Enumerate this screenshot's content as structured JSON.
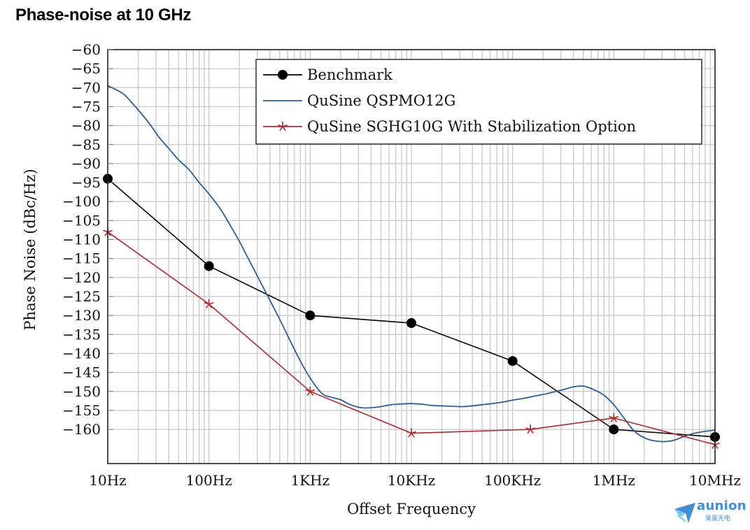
{
  "slide": {
    "title": "Phase-noise at 10 GHz"
  },
  "logo": {
    "name": "aunion",
    "subtitle": "昊量光电"
  },
  "chart_data": {
    "type": "line",
    "title": "Phase-noise at 10 GHz",
    "xlabel": "Offset Frequency",
    "ylabel": "Phase Noise (dBc/Hz)",
    "xscale": "log",
    "xlim": [
      10,
      10000000
    ],
    "ylim": [
      -169,
      -60
    ],
    "grid": true,
    "legend_position": "top-right",
    "x_ticks": [
      {
        "value": 10,
        "label": "10Hz"
      },
      {
        "value": 100,
        "label": "100Hz"
      },
      {
        "value": 1000,
        "label": "1KHz"
      },
      {
        "value": 10000,
        "label": "10KHz"
      },
      {
        "value": 100000,
        "label": "100KHz"
      },
      {
        "value": 1000000,
        "label": "1MHz"
      },
      {
        "value": 10000000,
        "label": "10MHz"
      }
    ],
    "y_ticks": [
      {
        "value": -60,
        "label": "−60"
      },
      {
        "value": -65,
        "label": "−65"
      },
      {
        "value": -70,
        "label": "−70"
      },
      {
        "value": -75,
        "label": "−75"
      },
      {
        "value": -80,
        "label": "−80"
      },
      {
        "value": -85,
        "label": "−85"
      },
      {
        "value": -90,
        "label": "−90"
      },
      {
        "value": -95,
        "label": "−95"
      },
      {
        "value": -100,
        "label": "−100"
      },
      {
        "value": -105,
        "label": "−105"
      },
      {
        "value": -110,
        "label": "−110"
      },
      {
        "value": -115,
        "label": "−115"
      },
      {
        "value": -120,
        "label": "−120"
      },
      {
        "value": -125,
        "label": "−125"
      },
      {
        "value": -130,
        "label": "−130"
      },
      {
        "value": -135,
        "label": "−135"
      },
      {
        "value": -140,
        "label": "−140"
      },
      {
        "value": -145,
        "label": "−145"
      },
      {
        "value": -150,
        "label": "−150"
      },
      {
        "value": -155,
        "label": "−155"
      },
      {
        "value": -160,
        "label": "−160"
      }
    ],
    "series": [
      {
        "name": "Benchmark",
        "color": "#000000",
        "marker": "circle",
        "smooth": false,
        "x": [
          10,
          100,
          1000,
          10000,
          100000,
          1000000,
          10000000
        ],
        "y": [
          -94,
          -117,
          -130,
          -132,
          -142,
          -160,
          -162
        ]
      },
      {
        "name": "QuSine QSPMO12G",
        "color": "#2b5d9a",
        "marker": "none",
        "smooth": true,
        "x": [
          10,
          14,
          18,
          25,
          32,
          40,
          50,
          63,
          80,
          100,
          130,
          160,
          200,
          250,
          320,
          400,
          500,
          630,
          800,
          1000,
          1300,
          1600,
          2000,
          2500,
          3200,
          4000,
          5000,
          6300,
          8000,
          10000,
          13000,
          16000,
          20000,
          25000,
          32000,
          40000,
          50000,
          63000,
          80000,
          100000,
          130000,
          160000,
          200000,
          250000,
          320000,
          400000,
          500000,
          630000,
          800000,
          1000000,
          1300000,
          1600000,
          2000000,
          2500000,
          3200000,
          4000000,
          5000000,
          6300000,
          8000000,
          10000000
        ],
        "y": [
          -69.5,
          -71.5,
          -74.5,
          -79,
          -83,
          -86,
          -89,
          -91.5,
          -95,
          -98,
          -102,
          -106,
          -110.5,
          -115.5,
          -121,
          -126,
          -131,
          -136.5,
          -142,
          -146.5,
          -150.5,
          -151.5,
          -152.2,
          -153.5,
          -154.3,
          -154.3,
          -154,
          -153.5,
          -153.3,
          -153.2,
          -153.4,
          -153.7,
          -153.8,
          -153.9,
          -154,
          -153.8,
          -153.5,
          -153.2,
          -152.8,
          -152.3,
          -151.8,
          -151.3,
          -150.8,
          -150.2,
          -149.5,
          -148.8,
          -148.6,
          -149.5,
          -151,
          -153.5,
          -157.5,
          -160.5,
          -162.2,
          -163,
          -163.2,
          -162.8,
          -161.8,
          -161,
          -160.5,
          -160.2
        ]
      },
      {
        "name": "QuSine SGHG10G With Stabilization Option",
        "color": "#b0282f",
        "marker": "star",
        "smooth": false,
        "x": [
          10,
          100,
          1000,
          10000,
          150000,
          1000000,
          10000000
        ],
        "y": [
          -108,
          -127,
          -150,
          -161,
          -160,
          -157,
          -164
        ]
      }
    ]
  }
}
